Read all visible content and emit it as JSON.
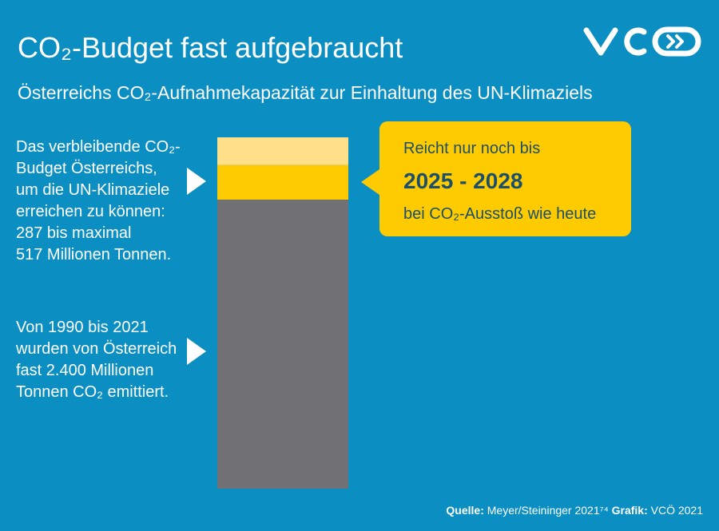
{
  "chart_data": {
    "type": "stacked-bar",
    "title": "CO₂-Budget fast aufgebraucht",
    "subtitle": "Österreichs CO₂-Aufnahmekapazität zur Einhaltung des UN-Klimaziels",
    "segments": [
      {
        "color": "#717174",
        "value": 2400
      },
      {
        "color": "#fecb00",
        "value": 287
      },
      {
        "color": "#ffe08a",
        "value": 230
      }
    ],
    "annotations": [
      {
        "lines": [
          "Das verbleibende CO₂-",
          "Budget Österreichs,",
          "um die UN-Klimaziele",
          "erreichen zu können:",
          "287 bis maximal",
          "517 Millionen Tonnen."
        ]
      },
      {
        "lines": [
          "Von 1990 bis 2021",
          "wurden von Österreich",
          "fast 2.400 Millionen",
          "Tonnen CO₂ emittiert."
        ]
      }
    ],
    "callout": {
      "line1": "Reicht nur noch bis",
      "highlight": "2025 - 2028",
      "line3": "bei CO₂-Ausstoß wie heute"
    },
    "source": {
      "label": "Quelle:",
      "text": "Meyer/Steininger 2021⁷⁴",
      "credit_label": "Grafik:",
      "credit": "VCÖ 2021"
    }
  }
}
